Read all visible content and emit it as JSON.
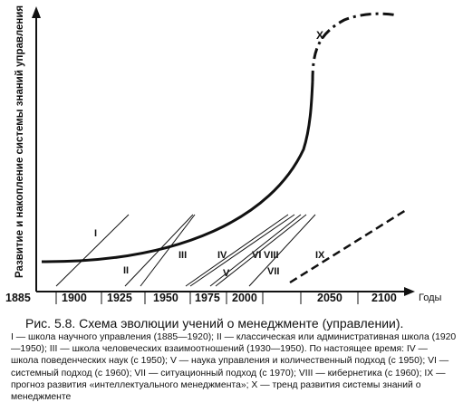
{
  "diagram": {
    "y_axis_label": "Развитие и накопление системы знаний  управления",
    "x_axis_unit": "Годы",
    "x_ticks": [
      "1885",
      "1900",
      "1925",
      "1950",
      "1975",
      "2000",
      "2050",
      "2100"
    ],
    "schools": [
      "I",
      "II",
      "III",
      "IV",
      "V",
      "VI",
      "VIII",
      "VII",
      "IX",
      "X"
    ]
  },
  "caption": {
    "title": "Рис. 5.8. Схема эволюции учений о менеджменте (управлении).",
    "text": "I — школа научного управления (1885—1920); II — классическая или административная школа (1920—1950); III — школа человеческих взаимоотношений (1930—1950). По настоящее время: IV — школа поведенческих наук (с 1950); V — наука управления и количественный подход (с 1950); VI — системный подход (с 1960); VII — ситуационный подход (с 1970); VIII — кибернетика (с 1960);  IX — прогноз развития  «интеллектуального менеджмента»; X — тренд развития системы знаний о менеджменте"
  }
}
